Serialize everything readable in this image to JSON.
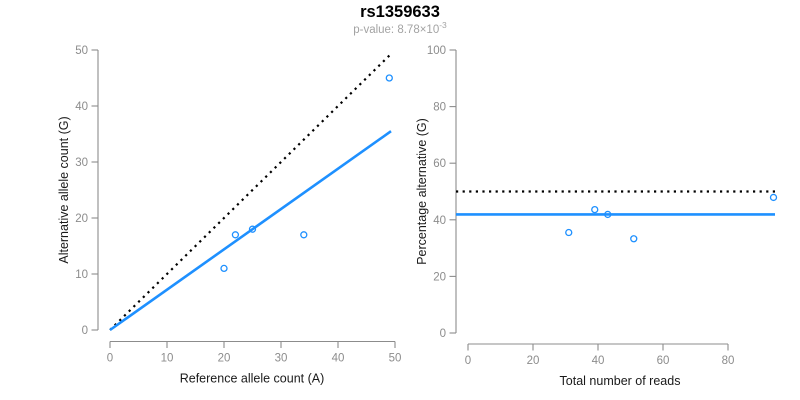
{
  "header": {
    "title": "rs1359633",
    "subtitle_prefix": "p-value: 8.78×10",
    "subtitle_exponent": "-3"
  },
  "colors": {
    "accent_blue": "#1E90FF",
    "reference_black": "#000000",
    "axis_gray": "#8c8c8c",
    "axis_title_black": "#1a1a1a",
    "subtitle_gray": "#a3a3a3",
    "background": "#ffffff"
  },
  "chart_data": [
    {
      "type": "scatter",
      "panel": "left",
      "xlabel": "Reference allele count (A)",
      "ylabel": "Alternative allele count (G)",
      "xlim": [
        0,
        50
      ],
      "ylim": [
        0,
        50
      ],
      "xticks": [
        0,
        10,
        20,
        30,
        40,
        50
      ],
      "yticks": [
        0,
        10,
        20,
        30,
        40,
        50
      ],
      "grid": false,
      "points": [
        [
          20,
          11
        ],
        [
          22,
          17
        ],
        [
          25,
          18
        ],
        [
          34,
          17
        ],
        [
          49,
          45
        ]
      ],
      "lines": [
        {
          "name": "identity-expected-line",
          "style": "dotted",
          "color": "#000000",
          "from": [
            0,
            0
          ],
          "to": [
            49.3,
            49.3
          ]
        },
        {
          "name": "fitted-proportion-line",
          "style": "solid",
          "color": "#1E90FF",
          "from": [
            0,
            0
          ],
          "to": [
            49.3,
            35.5
          ]
        }
      ]
    },
    {
      "type": "scatter",
      "panel": "right",
      "xlabel": "Total number of reads",
      "ylabel": "Percentage alternative (G)",
      "xlim": [
        0,
        94
      ],
      "ylim": [
        0,
        100
      ],
      "xticks": [
        0,
        20,
        40,
        60,
        80
      ],
      "yticks": [
        0,
        20,
        40,
        60,
        80,
        100
      ],
      "grid": false,
      "points": [
        [
          31,
          35.5
        ],
        [
          39,
          43.6
        ],
        [
          43,
          41.9
        ],
        [
          51,
          33.3
        ],
        [
          94,
          47.9
        ]
      ],
      "lines": [
        {
          "name": "expected-50-percent-line",
          "style": "dotted",
          "color": "#000000",
          "y": 50
        },
        {
          "name": "observed-mean-line",
          "style": "solid",
          "color": "#1E90FF",
          "y": 41.9
        }
      ]
    }
  ]
}
